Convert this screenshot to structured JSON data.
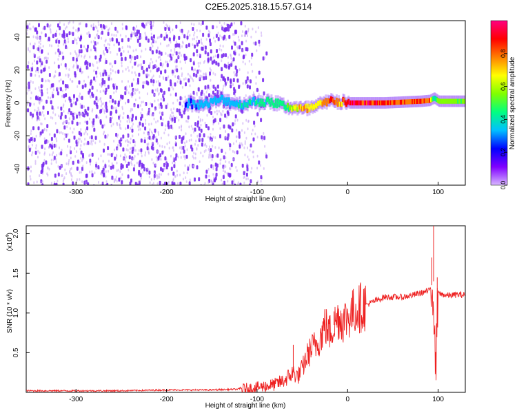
{
  "title": "C2E5.2025.318.15.57.G14",
  "chart_data": [
    {
      "type": "heatmap",
      "title": "C2E5.2025.318.15.57.G14",
      "xlabel": "Height of straight line (km)",
      "ylabel": "Frequency (Hz)",
      "xlim": [
        -355,
        130
      ],
      "ylim": [
        -50,
        50
      ],
      "xticks": [
        -300,
        -200,
        -100,
        0,
        100
      ],
      "yticks": [
        -40,
        -20,
        0,
        20,
        40
      ],
      "colorbar": {
        "label": "Normalized spectral amplitude",
        "range": [
          0.0,
          1.0
        ],
        "ticks": [
          "0.0",
          "0.2",
          "0.4",
          "0.6",
          "0.8"
        ],
        "colors": [
          "#d8b8ff",
          "#8000ff",
          "#0000ff",
          "#00c0ff",
          "#00ff80",
          "#80ff00",
          "#ffff00",
          "#ff8000",
          "#ff0000",
          "#ff0080"
        ]
      },
      "signal_track": {
        "x": [
          -180,
          -160,
          -140,
          -120,
          -100,
          -80,
          -70,
          -60,
          -50,
          -40,
          -30,
          -20,
          -15,
          -10,
          -5,
          0,
          20,
          40,
          60,
          80,
          90,
          95,
          100,
          130
        ],
        "freq": [
          0,
          -1,
          2,
          -1,
          1,
          0,
          -2,
          -3,
          -4,
          -3,
          -1,
          1,
          2,
          0,
          1,
          0,
          0,
          0,
          0.5,
          1,
          1.5,
          3,
          1,
          1
        ],
        "amplitude": [
          0.3,
          0.35,
          0.35,
          0.4,
          0.45,
          0.5,
          0.5,
          0.7,
          0.8,
          0.75,
          0.85,
          0.9,
          0.95,
          0.85,
          0.9,
          1.0,
          1.0,
          0.95,
          0.9,
          0.9,
          0.85,
          0.4,
          0.6,
          0.6
        ]
      }
    },
    {
      "type": "line",
      "xlabel": "Height of straight line (km)",
      "ylabel": "SNR (10 * v/v)",
      "multiplier": "(x10",
      "multiplier_exp": "4",
      "multiplier_close": ")",
      "xlim": [
        -355,
        130
      ],
      "ylim": [
        0,
        2.1
      ],
      "xticks": [
        -300,
        -200,
        -100,
        0,
        100
      ],
      "yticks": [
        "0.5",
        "1.0",
        "1.5",
        "2.0"
      ],
      "color": "#ee2020",
      "series": [
        {
          "name": "SNR",
          "x": [
            -355,
            -300,
            -250,
            -200,
            -150,
            -120,
            -100,
            -90,
            -80,
            -70,
            -65,
            -60,
            -55,
            -50,
            -45,
            -40,
            -35,
            -30,
            -25,
            -20,
            -15,
            -10,
            -5,
            0,
            10,
            20,
            30,
            40,
            50,
            60,
            70,
            80,
            90,
            95,
            97,
            100,
            110,
            120,
            130
          ],
          "values": [
            0.02,
            0.02,
            0.02,
            0.03,
            0.03,
            0.04,
            0.06,
            0.08,
            0.1,
            0.15,
            0.2,
            0.25,
            0.2,
            0.3,
            0.45,
            0.55,
            0.6,
            0.7,
            0.85,
            0.75,
            0.85,
            0.95,
            0.9,
            0.95,
            1.05,
            1.1,
            1.15,
            1.2,
            1.2,
            1.2,
            1.22,
            1.25,
            1.28,
            1.4,
            0.1,
            1.25,
            1.22,
            1.23,
            1.23
          ],
          "peaks": [
            [
              -60,
              0.6
            ],
            [
              -25,
              1.05
            ],
            [
              -15,
              1.02
            ],
            [
              95,
              2.1
            ],
            [
              93,
              1.7
            ],
            [
              99,
              1.45
            ]
          ]
        }
      ]
    }
  ]
}
